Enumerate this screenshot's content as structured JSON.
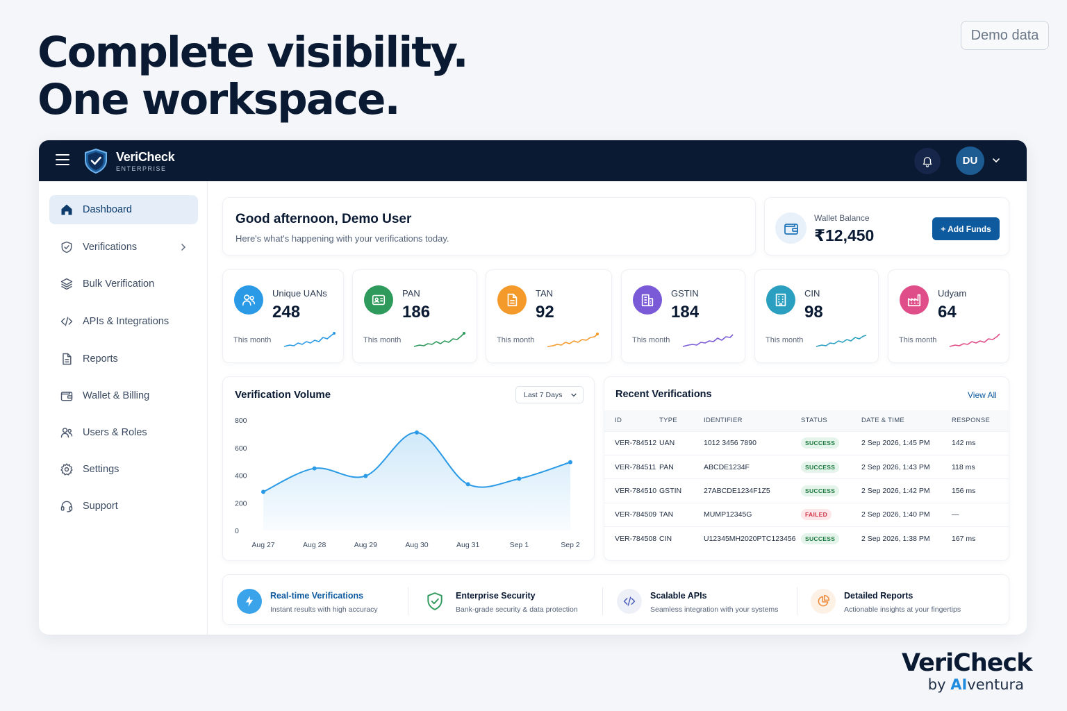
{
  "headline": {
    "line1": "Complete visibility.",
    "line2": "One workspace."
  },
  "demo_badge": "Demo data",
  "topbar": {
    "brand": "VeriCheck",
    "brand_sub": "ENTERPRISE",
    "avatar_initials": "DU"
  },
  "sidebar": {
    "items": [
      {
        "label": "Dashboard",
        "icon": "home-icon",
        "active": true
      },
      {
        "label": "Verifications",
        "icon": "shield-check-icon"
      },
      {
        "label": "Bulk Verification",
        "icon": "layers-icon"
      },
      {
        "label": "APIs & Integrations",
        "icon": "code-icon"
      },
      {
        "label": "Reports",
        "icon": "document-icon"
      },
      {
        "label": "Wallet & Billing",
        "icon": "wallet-icon"
      },
      {
        "label": "Users & Roles",
        "icon": "users-icon"
      },
      {
        "label": "Settings",
        "icon": "gear-icon"
      },
      {
        "label": "Support",
        "icon": "headset-icon"
      }
    ]
  },
  "greeting": {
    "title": "Good afternoon, Demo User",
    "subtitle": "Here's what's happening with your verifications today."
  },
  "wallet": {
    "label": "Wallet Balance",
    "amount": "₹12,450",
    "button": "+ Add Funds"
  },
  "stats": [
    {
      "label": "Unique UANs",
      "value": "248",
      "sub": "This month",
      "color": "#2a9ae6",
      "icon": "users-icon"
    },
    {
      "label": "PAN",
      "value": "186",
      "sub": "This month",
      "color": "#2e9a5c",
      "icon": "id-card-icon"
    },
    {
      "label": "TAN",
      "value": "92",
      "sub": "This month",
      "color": "#f39a2b",
      "icon": "document-icon"
    },
    {
      "label": "GSTIN",
      "value": "184",
      "sub": "This month",
      "color": "#7a5ad6",
      "icon": "building-icon"
    },
    {
      "label": "CIN",
      "value": "98",
      "sub": "This month",
      "color": "#2a9fc0",
      "icon": "building-icon"
    },
    {
      "label": "Udyam",
      "value": "64",
      "sub": "This month",
      "color": "#e04e8a",
      "icon": "factory-icon"
    }
  ],
  "volume": {
    "title": "Verification Volume",
    "range": "Last 7 Days"
  },
  "chart_data": {
    "type": "area",
    "title": "Verification Volume",
    "categories": [
      "Aug 27",
      "Aug 28",
      "Aug 29",
      "Aug 30",
      "Aug 31",
      "Sep 1",
      "Sep 2"
    ],
    "values": [
      280,
      450,
      395,
      710,
      335,
      375,
      495
    ],
    "yticks": [
      0,
      200,
      400,
      600,
      800
    ],
    "ylim": [
      0,
      800
    ],
    "grid": false,
    "color": "#2a9ae6"
  },
  "recent": {
    "title": "Recent Verifications",
    "view_all": "View All",
    "columns": [
      "ID",
      "TYPE",
      "IDENTIFIER",
      "STATUS",
      "DATE & TIME",
      "RESPONSE"
    ],
    "rows": [
      {
        "id": "VER-784512",
        "type": "UAN",
        "identifier": "1012 3456 7890",
        "status": "SUCCESS",
        "datetime": "2 Sep 2026, 1:45 PM",
        "response": "142 ms"
      },
      {
        "id": "VER-784511",
        "type": "PAN",
        "identifier": "ABCDE1234F",
        "status": "SUCCESS",
        "datetime": "2 Sep 2026, 1:43 PM",
        "response": "118 ms"
      },
      {
        "id": "VER-784510",
        "type": "GSTIN",
        "identifier": "27ABCDE1234F1Z5",
        "status": "SUCCESS",
        "datetime": "2 Sep 2026, 1:42 PM",
        "response": "156 ms"
      },
      {
        "id": "VER-784509",
        "type": "TAN",
        "identifier": "MUMP12345G",
        "status": "FAILED",
        "datetime": "2 Sep 2026, 1:40 PM",
        "response": "—"
      },
      {
        "id": "VER-784508",
        "type": "CIN",
        "identifier": "U12345MH2020PTC123456",
        "status": "SUCCESS",
        "datetime": "2 Sep 2026, 1:38 PM",
        "response": "167 ms"
      }
    ]
  },
  "features": [
    {
      "title": "Real-time Verifications",
      "sub": "Instant results with high accuracy",
      "icon": "bolt-icon",
      "title_color": "#0d5a9f"
    },
    {
      "title": "Enterprise Security",
      "sub": "Bank-grade security & data protection",
      "icon": "shield-check-icon",
      "title_color": "#0b1a33"
    },
    {
      "title": "Scalable APIs",
      "sub": "Seamless integration with your systems",
      "icon": "code-icon",
      "title_color": "#0b1a33"
    },
    {
      "title": "Detailed Reports",
      "sub": "Actionable insights at your fingertips",
      "icon": "pie-chart-icon",
      "title_color": "#0b1a33"
    }
  ],
  "footer_brand": {
    "name": "VeriCheck",
    "by": "by ",
    "ai": "AI",
    "rest": "ventura"
  }
}
